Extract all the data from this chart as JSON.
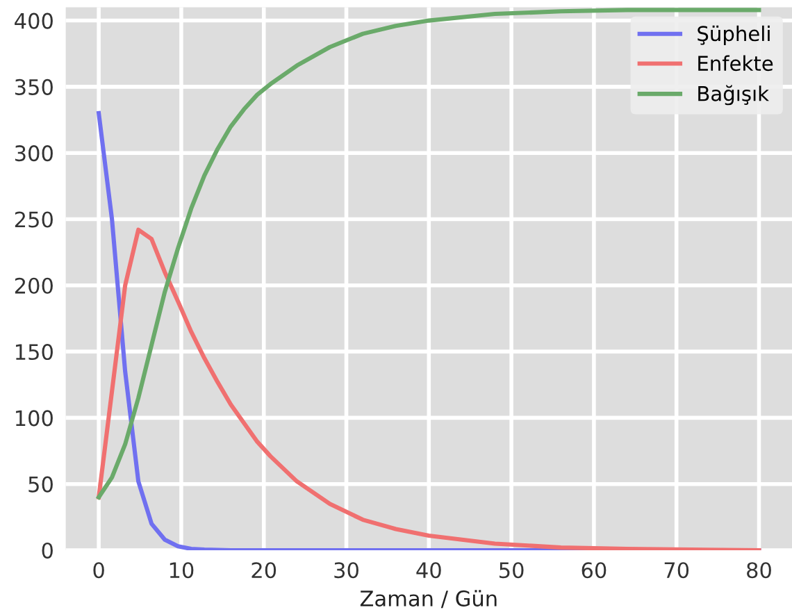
{
  "chart_data": {
    "type": "line",
    "xlabel": "Zaman / Gün",
    "xlim": [
      -4,
      84
    ],
    "ylim": [
      0,
      410
    ],
    "xticks": [
      0,
      10,
      20,
      30,
      40,
      50,
      60,
      70,
      80
    ],
    "yticks": [
      0,
      50,
      100,
      150,
      200,
      250,
      300,
      350,
      400
    ],
    "grid": true,
    "legend": "top right",
    "marker": "none",
    "line_style": "solid",
    "series": [
      {
        "name": "Şüpheli",
        "color": "#7070f0",
        "x": [
          0,
          1.6,
          3.2,
          4.8,
          6.4,
          8,
          9.6,
          11.2,
          12.8,
          16,
          24,
          40,
          80
        ],
        "values": [
          330,
          250,
          135,
          52,
          20,
          8,
          3,
          1,
          0.5,
          0,
          0,
          0,
          0
        ]
      },
      {
        "name": "Enfekte",
        "color": "#f07070",
        "x": [
          0,
          1.6,
          3.2,
          4.8,
          6.4,
          8,
          9.6,
          11.2,
          12.8,
          14.4,
          16,
          17.6,
          19.2,
          20.8,
          24,
          28,
          32,
          36,
          40,
          48,
          56,
          64,
          80
        ],
        "values": [
          40,
          120,
          200,
          242,
          235,
          210,
          188,
          165,
          145,
          127,
          110,
          96,
          82,
          71,
          52,
          35,
          23,
          16,
          11,
          5,
          2,
          1,
          0
        ]
      },
      {
        "name": "Bağışık",
        "color": "#6aaa6a",
        "x": [
          0,
          1.6,
          3.2,
          4.8,
          6.4,
          8,
          9.6,
          11.2,
          12.8,
          14.4,
          16,
          17.6,
          19.2,
          20.8,
          24,
          28,
          32,
          36,
          40,
          48,
          56,
          64,
          80
        ],
        "values": [
          40,
          55,
          80,
          115,
          155,
          195,
          228,
          258,
          283,
          303,
          320,
          333,
          344,
          352,
          366,
          380,
          390,
          396,
          400,
          405,
          407,
          408,
          408
        ]
      }
    ]
  }
}
